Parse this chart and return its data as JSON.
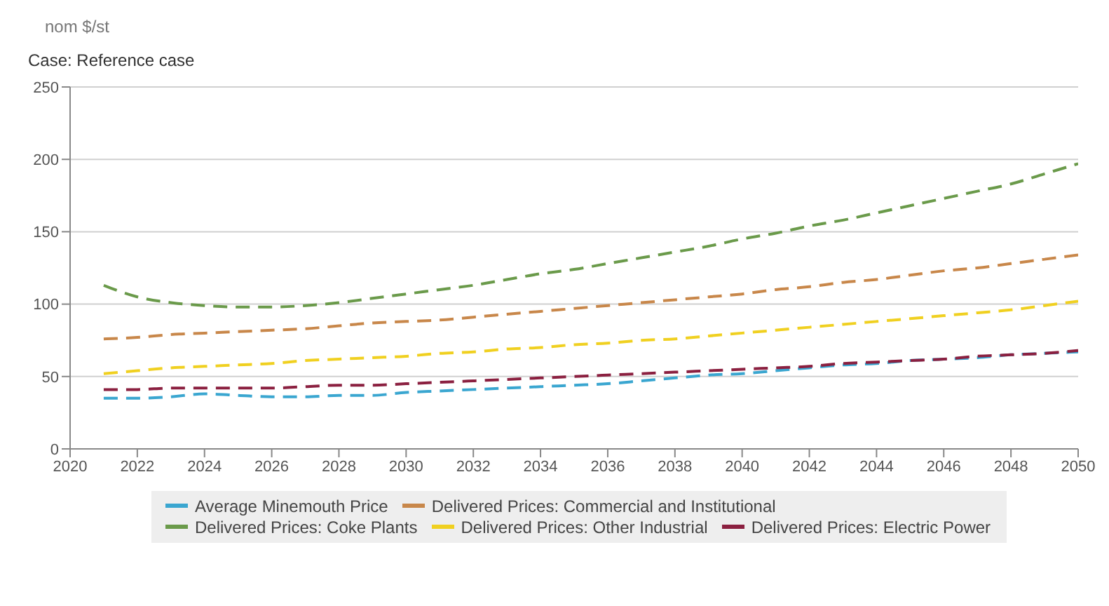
{
  "chart_data": {
    "type": "line",
    "subtitle": "Case: Reference case",
    "ylabel": "nom $/st",
    "x": [
      2021,
      2022,
      2023,
      2024,
      2025,
      2026,
      2027,
      2028,
      2029,
      2030,
      2031,
      2032,
      2033,
      2034,
      2035,
      2036,
      2037,
      2038,
      2039,
      2040,
      2041,
      2042,
      2043,
      2044,
      2045,
      2046,
      2047,
      2048,
      2049,
      2050
    ],
    "series": [
      {
        "name": "Average Minemouth Price",
        "color": "#3aa6d0",
        "values": [
          35,
          35,
          36,
          38,
          37,
          36,
          36,
          37,
          37,
          39,
          40,
          41,
          42,
          43,
          44,
          45,
          47,
          49,
          51,
          52,
          54,
          56,
          58,
          59,
          61,
          62,
          63,
          65,
          66,
          67
        ]
      },
      {
        "name": "Delivered Prices: Commercial and Institutional",
        "color": "#c8874a",
        "values": [
          76,
          77,
          79,
          80,
          81,
          82,
          83,
          85,
          87,
          88,
          89,
          91,
          93,
          95,
          97,
          99,
          101,
          103,
          105,
          107,
          110,
          112,
          115,
          117,
          120,
          123,
          125,
          128,
          131,
          134
        ]
      },
      {
        "name": "Delivered Prices: Coke Plants",
        "color": "#6a9a4a",
        "values": [
          113,
          105,
          101,
          99,
          98,
          98,
          99,
          101,
          104,
          107,
          110,
          113,
          117,
          121,
          124,
          128,
          132,
          136,
          140,
          145,
          149,
          154,
          158,
          163,
          168,
          173,
          178,
          183,
          190,
          197
        ]
      },
      {
        "name": "Delivered Prices: Other Industrial",
        "color": "#f0d020",
        "values": [
          52,
          54,
          56,
          57,
          58,
          59,
          61,
          62,
          63,
          64,
          66,
          67,
          69,
          70,
          72,
          73,
          75,
          76,
          78,
          80,
          82,
          84,
          86,
          88,
          90,
          92,
          94,
          96,
          99,
          102
        ]
      },
      {
        "name": "Delivered Prices: Electric Power",
        "color": "#8b2040",
        "values": [
          41,
          41,
          42,
          42,
          42,
          42,
          43,
          44,
          44,
          45,
          46,
          47,
          48,
          49,
          50,
          51,
          52,
          53,
          54,
          55,
          56,
          57,
          59,
          60,
          61,
          62,
          64,
          65,
          66,
          68
        ]
      }
    ],
    "xlim": [
      2020,
      2050
    ],
    "xticks": [
      2020,
      2022,
      2024,
      2026,
      2028,
      2030,
      2032,
      2034,
      2036,
      2038,
      2040,
      2042,
      2044,
      2046,
      2048,
      2050
    ],
    "ylim": [
      0,
      250
    ],
    "yticks": [
      0,
      50,
      100,
      150,
      200,
      250
    ],
    "grid": "y",
    "legend": "bottom",
    "line_style": "dashed",
    "marker": "none"
  }
}
